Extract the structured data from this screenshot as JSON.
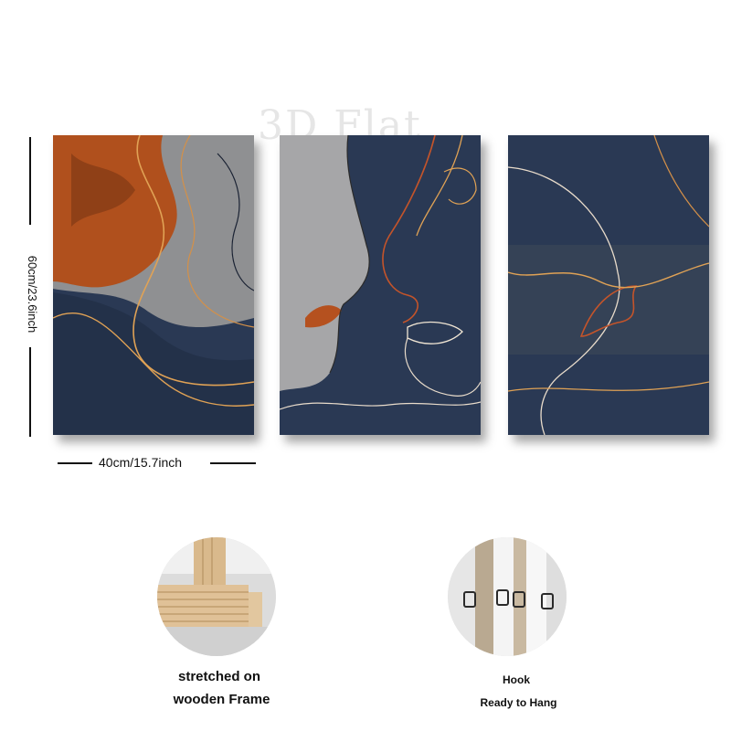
{
  "watermark": "3D Flat",
  "dimensions": {
    "height_label": "60cm/23.6inch",
    "width_label": "40cm/15.7inch"
  },
  "features": {
    "frame": {
      "line1": "stretched on",
      "line2": "wooden Frame"
    },
    "hook": {
      "line1": "Hook",
      "line2": "Ready to Hang"
    }
  },
  "colors": {
    "navy": "#2a3954",
    "rust": "#b5511f",
    "grey": "#9a9a9a",
    "gold_line": "#e0a255"
  }
}
